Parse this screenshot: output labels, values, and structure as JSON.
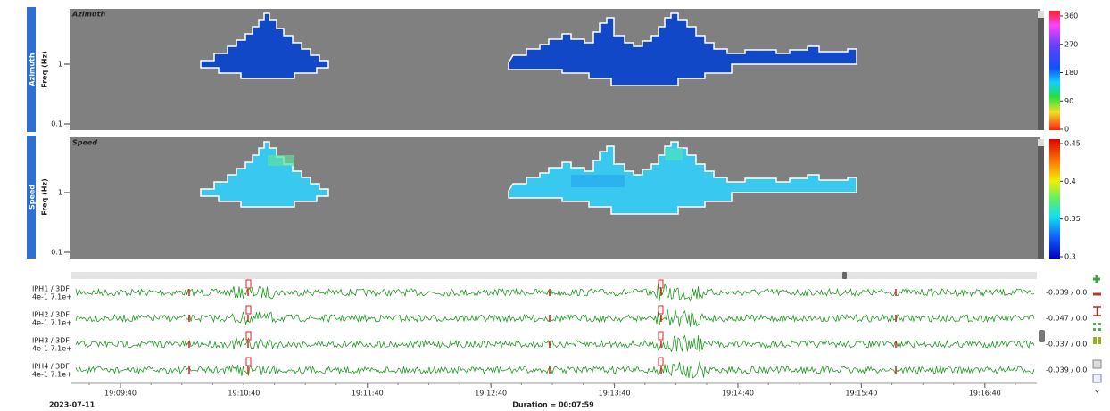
{
  "panels": [
    {
      "tab": "Azimuth",
      "ylabel": "Freq (Hz)",
      "title": "Azimuth",
      "yticks": [
        "1",
        "0.1"
      ],
      "colorbar_ticks": [
        "360",
        "270",
        "180",
        "90",
        "0"
      ]
    },
    {
      "tab": "Speed",
      "ylabel": "Freq (Hz)",
      "title": "Speed",
      "yticks": [
        "1",
        "0.1"
      ],
      "colorbar_ticks": [
        "0.45",
        "0.4",
        "0.35",
        "0.3"
      ]
    }
  ],
  "traces": [
    {
      "name": "IPH1 / 3DF",
      "scale": "4e-1 7.1e+",
      "range": "-0.039 / 0.0"
    },
    {
      "name": "IPH2 / 3DF",
      "scale": "4e-1 7.1e+",
      "range": "-0.047 / 0.0"
    },
    {
      "name": "IPH3 / 3DF",
      "scale": "4e-1 7.1e+",
      "range": "-0.037 / 0.0"
    },
    {
      "name": "IPH4 / 3DF",
      "scale": "4e-1 7.1e+",
      "range": "-0.039 / 0.0"
    }
  ],
  "time_ticks": [
    "19:09:40",
    "19:10:40",
    "19:11:40",
    "19:12:40",
    "19:13:40",
    "19:14:40",
    "19:15:40",
    "19:16:40"
  ],
  "date": "2023-07-11",
  "duration": "Duration = 00:07:59"
}
